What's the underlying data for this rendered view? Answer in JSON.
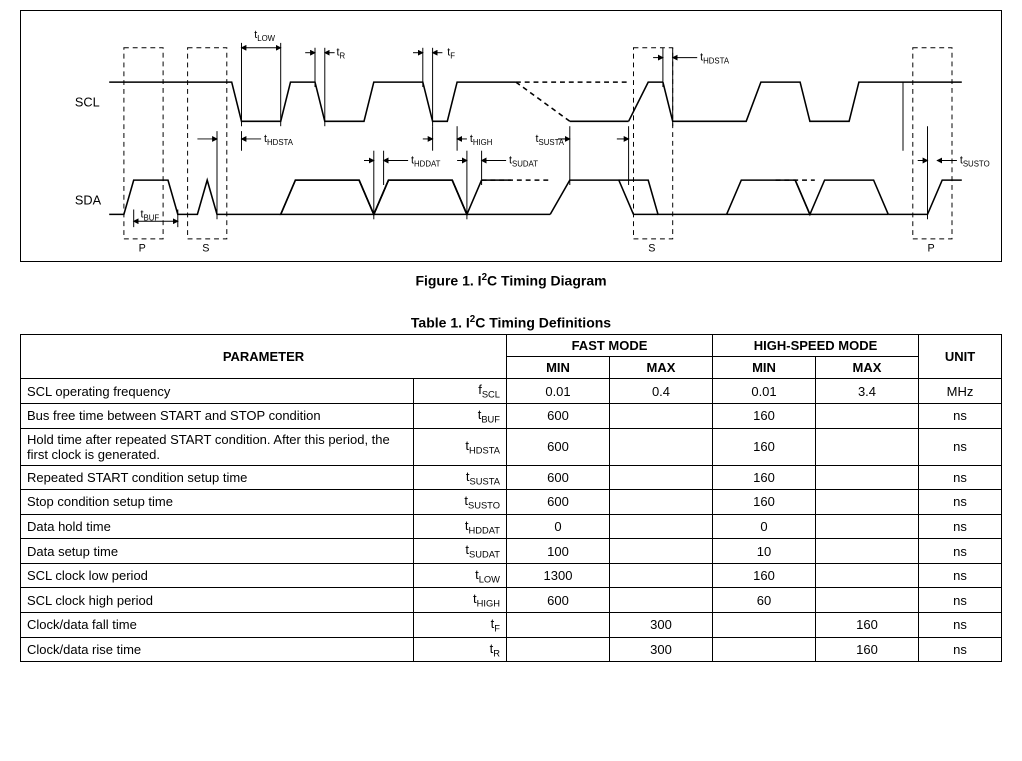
{
  "figure": {
    "caption_prefix": "Figure 1.  I",
    "caption_sup": "2",
    "caption_suffix": "C Timing Diagram",
    "signals": {
      "scl": "SCL",
      "sda": "SDA"
    },
    "markers": {
      "tlow": "LOW",
      "tr": "R",
      "tf": "F",
      "thdsta": "HDSTA",
      "thigh": "HIGH",
      "tsusta": "SUSTA",
      "thddat": "HDDAT",
      "tsudat": "SUDAT",
      "tsusto": "SUSTO",
      "tbuf": "BUF",
      "p": "P",
      "s": "S"
    },
    "colors": {
      "stroke": "#000000",
      "bg": "#ffffff"
    }
  },
  "table": {
    "title_prefix": "Table 1. I",
    "title_sup": "2",
    "title_suffix": "C Timing Definitions",
    "headers": {
      "parameter": "PARAMETER",
      "fast": "FAST MODE",
      "hs": "HIGH-SPEED MODE",
      "min": "MIN",
      "max": "MAX",
      "unit": "UNIT"
    },
    "rows": [
      {
        "param": "SCL operating frequency",
        "sym_t": "f",
        "sym_sub": "SCL",
        "fmin": "0.01",
        "fmax": "0.4",
        "hmin": "0.01",
        "hmax": "3.4",
        "unit": "MHz"
      },
      {
        "param": "Bus free time between START and STOP condition",
        "sym_t": "t",
        "sym_sub": "BUF",
        "fmin": "600",
        "fmax": "",
        "hmin": "160",
        "hmax": "",
        "unit": "ns"
      },
      {
        "param": "Hold time after repeated START condition. After this period, the first clock is generated.",
        "sym_t": "t",
        "sym_sub": "HDSTA",
        "fmin": "600",
        "fmax": "",
        "hmin": "160",
        "hmax": "",
        "unit": "ns"
      },
      {
        "param": "Repeated START condition setup time",
        "sym_t": "t",
        "sym_sub": "SUSTA",
        "fmin": "600",
        "fmax": "",
        "hmin": "160",
        "hmax": "",
        "unit": "ns"
      },
      {
        "param": "Stop condition setup time",
        "sym_t": "t",
        "sym_sub": "SUSTO",
        "fmin": "600",
        "fmax": "",
        "hmin": "160",
        "hmax": "",
        "unit": "ns"
      },
      {
        "param": "Data hold time",
        "sym_t": "t",
        "sym_sub": "HDDAT",
        "fmin": "0",
        "fmax": "",
        "hmin": "0",
        "hmax": "",
        "unit": "ns"
      },
      {
        "param": "Data setup time",
        "sym_t": "t",
        "sym_sub": "SUDAT",
        "fmin": "100",
        "fmax": "",
        "hmin": "10",
        "hmax": "",
        "unit": "ns"
      },
      {
        "param": "SCL clock low period",
        "sym_t": "t",
        "sym_sub": "LOW",
        "fmin": "1300",
        "fmax": "",
        "hmin": "160",
        "hmax": "",
        "unit": "ns"
      },
      {
        "param": "SCL clock high period",
        "sym_t": "t",
        "sym_sub": "HIGH",
        "fmin": "600",
        "fmax": "",
        "hmin": "60",
        "hmax": "",
        "unit": "ns"
      },
      {
        "param": "Clock/data fall time",
        "sym_t": "t",
        "sym_sub": "F",
        "fmin": "",
        "fmax": "300",
        "hmin": "",
        "hmax": "160",
        "unit": "ns"
      },
      {
        "param": "Clock/data rise time",
        "sym_t": "t",
        "sym_sub": "R",
        "fmin": "",
        "fmax": "300",
        "hmin": "",
        "hmax": "160",
        "unit": "ns"
      }
    ]
  }
}
